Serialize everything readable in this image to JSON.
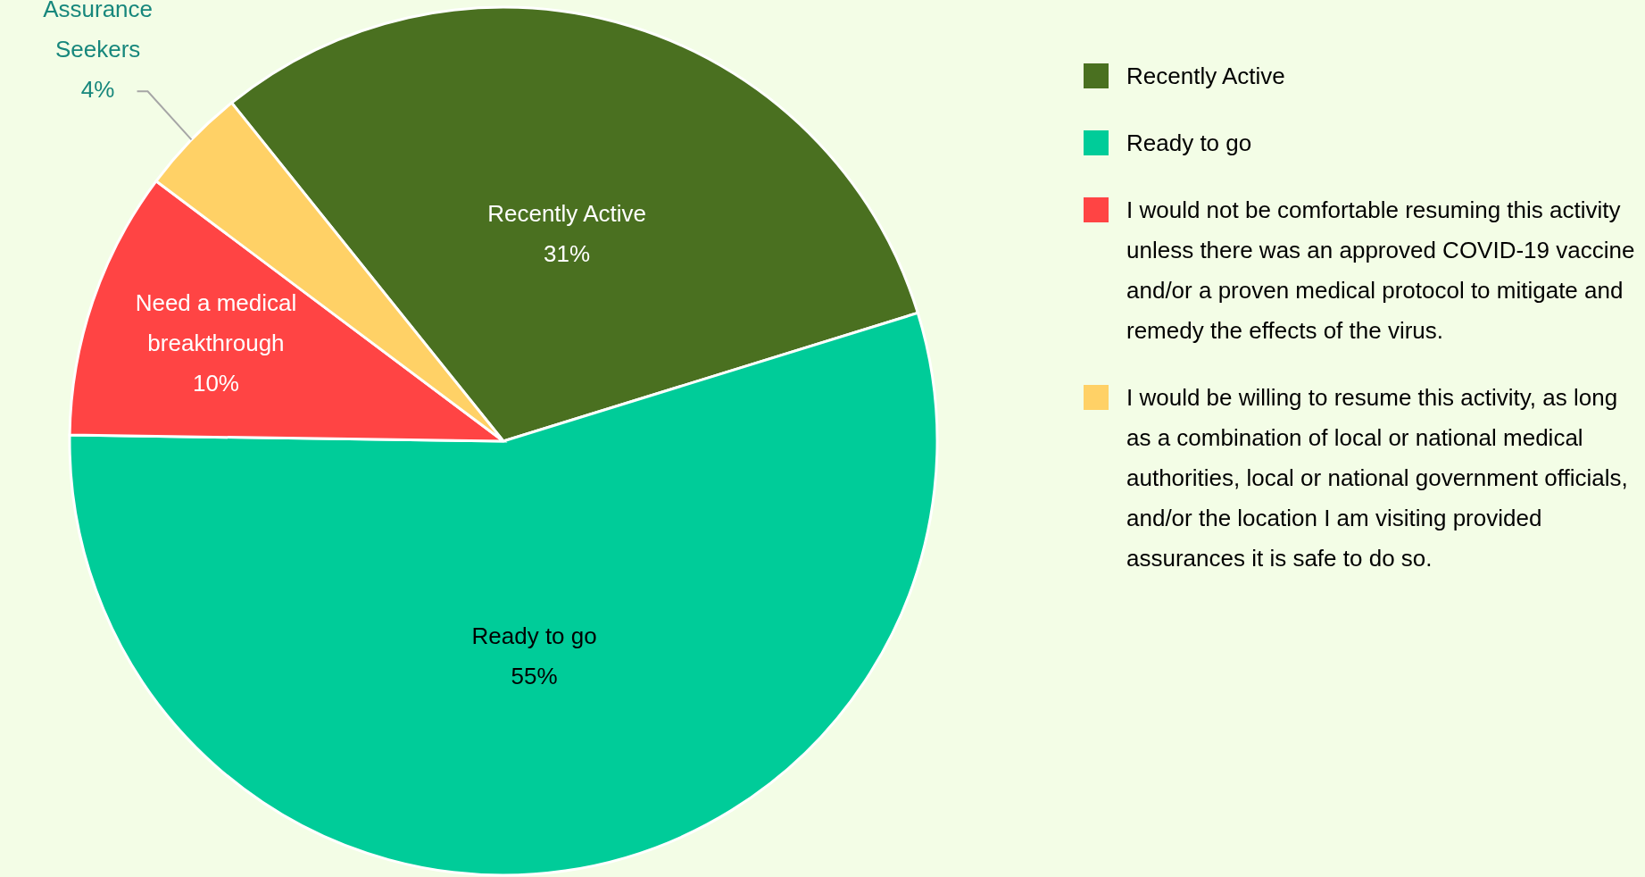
{
  "chart_data": {
    "type": "pie",
    "categories": [
      "Recently Active",
      "Ready to go",
      "I would not be comfortable resuming this activity unless there was an approved COVID-19 vaccine and/or a proven medical protocol to mitigate and remedy the effects of the virus.",
      "I would be willing to resume this activity, as long as a combination of local or national medical authorities, local or national government officials, and/or the location I am visiting provided assurances it is safe to do so."
    ],
    "values": [
      31,
      55,
      10,
      4
    ],
    "colors": [
      "#4a7020",
      "#00cc99",
      "#ff4444",
      "#ffd166"
    ],
    "value_labels": [
      "Recently Active\n31%",
      "Ready to go\n55%",
      "Need a medical\nbreakthrough\n10%",
      "Assurance\nSeekers\n4%"
    ],
    "legend": "right"
  }
}
